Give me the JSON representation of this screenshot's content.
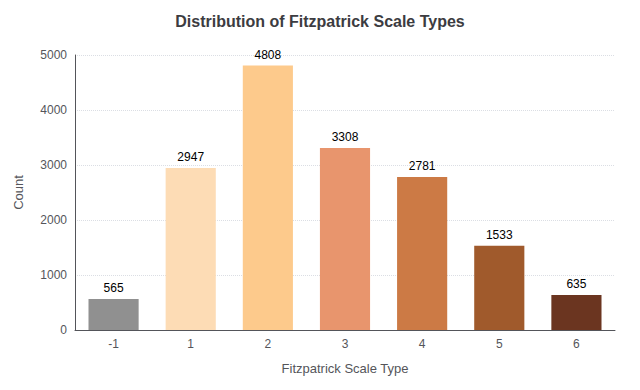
{
  "chart_data": {
    "type": "bar",
    "title": "Distribution of Fitzpatrick Scale Types",
    "xlabel": "Fitzpatrick Scale Type",
    "ylabel": "Count",
    "categories": [
      "-1",
      "1",
      "2",
      "3",
      "4",
      "5",
      "6"
    ],
    "values": [
      565,
      2947,
      4808,
      3308,
      2781,
      1533,
      635
    ],
    "colors": [
      "#909090",
      "#FDDCB5",
      "#FDCA8C",
      "#E8956D",
      "#CC7A45",
      "#A05A2C",
      "#6B3520"
    ],
    "ylim": [
      0,
      5000
    ],
    "yticks": [
      0,
      1000,
      2000,
      3000,
      4000,
      5000
    ],
    "grid": true,
    "data_labels": true
  }
}
